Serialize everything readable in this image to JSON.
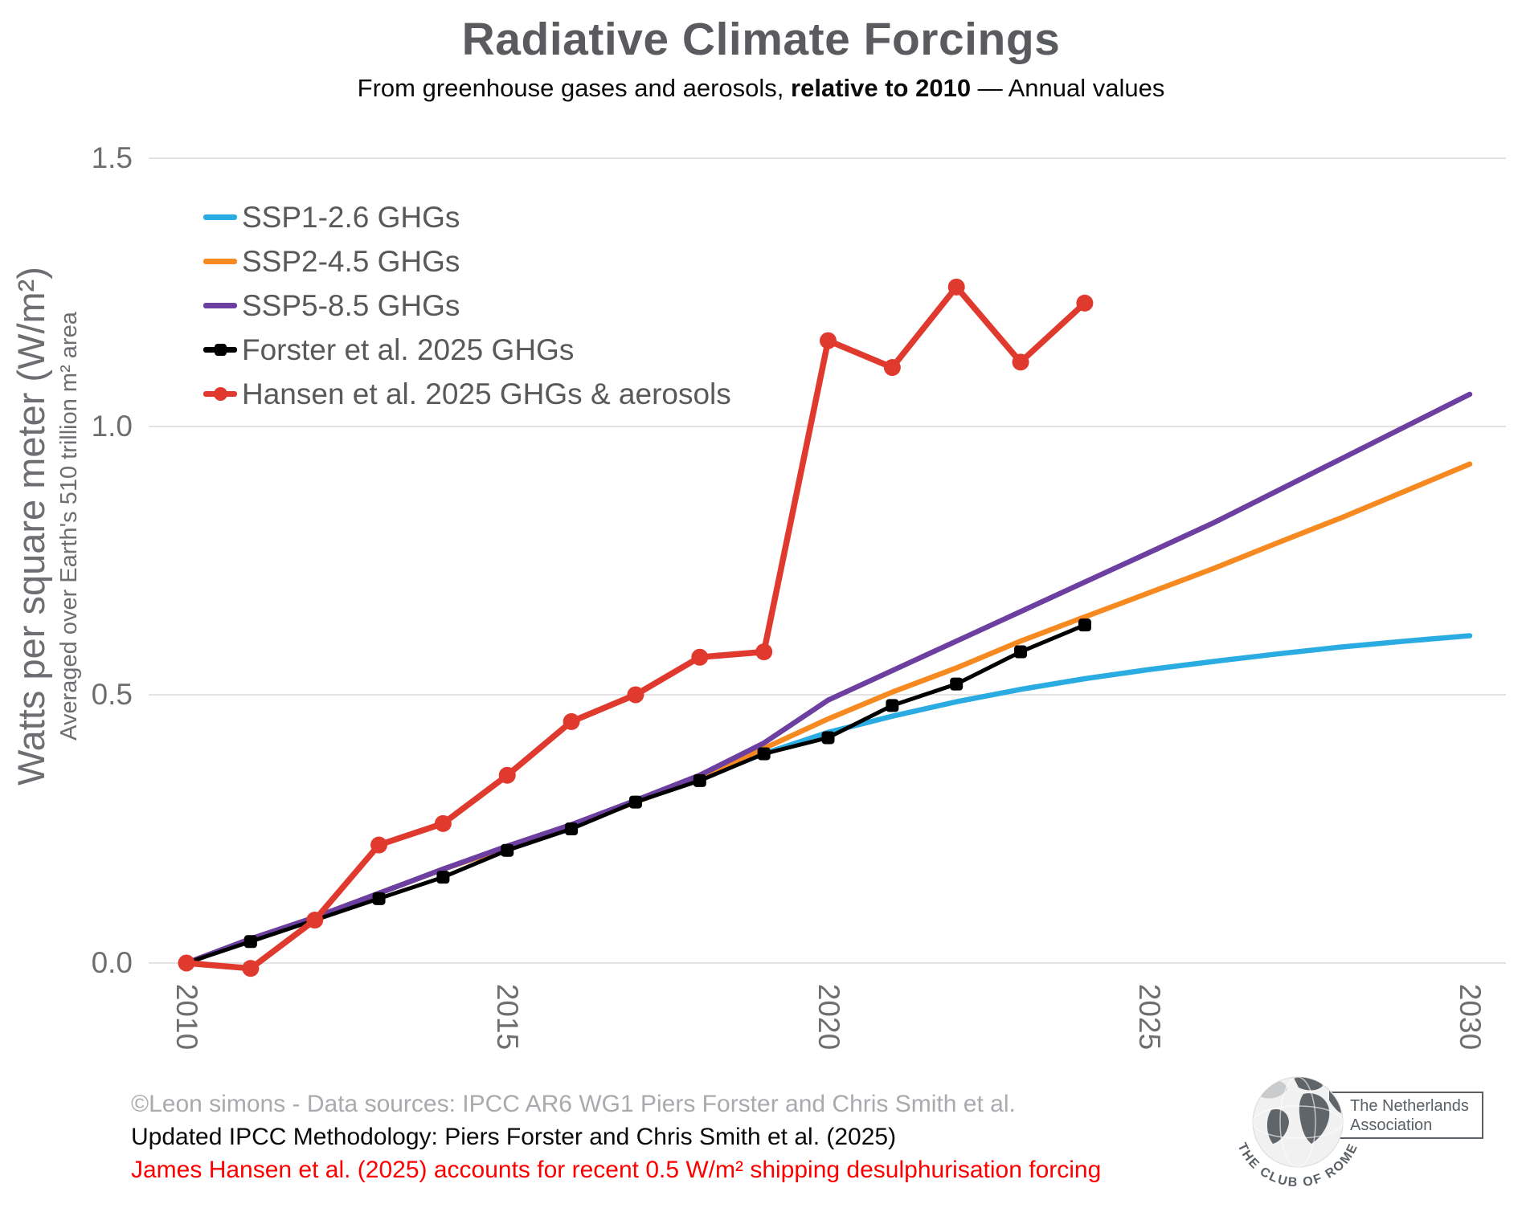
{
  "title": "Radiative Climate Forcings",
  "subtitle": {
    "prefix": "From greenhouse gases and aerosols, ",
    "bold": "relative to 2010",
    "suffix": " — Annual values"
  },
  "y_axis": {
    "label_main": "Watts per square meter (W/m²)",
    "label_sub": "Averaged over Earth's 510 trillion m² area"
  },
  "chart_data": {
    "type": "line",
    "title": "Radiative Climate Forcings",
    "xlabel": "",
    "ylabel": "Watts per square meter (W/m²)",
    "x_range": [
      2009.4,
      2030.6
    ],
    "y_range": [
      -0.05,
      1.5
    ],
    "x_ticks": [
      2010,
      2015,
      2020,
      2025,
      2030
    ],
    "x_tick_labels": [
      "2010",
      "2015",
      "2020",
      "2025",
      "2030"
    ],
    "y_ticks": [
      0.0,
      0.5,
      1.0,
      1.5
    ],
    "y_tick_labels": [
      "0.0",
      "0.5",
      "1.0",
      "1.5"
    ],
    "grid": "horizontal-only",
    "legend_position": "top-left",
    "series": [
      {
        "name": "SSP1-2.6 GHGs",
        "color": "#2AACE2",
        "marker": "none",
        "x": [
          2010,
          2011,
          2012,
          2013,
          2014,
          2015,
          2016,
          2017,
          2018,
          2019,
          2020,
          2021,
          2022,
          2023,
          2024,
          2025,
          2026,
          2027,
          2028,
          2029,
          2030
        ],
        "values": [
          0.0,
          0.045,
          0.085,
          0.13,
          0.175,
          0.215,
          0.255,
          0.3,
          0.345,
          0.39,
          0.43,
          0.46,
          0.487,
          0.51,
          0.53,
          0.547,
          0.562,
          0.576,
          0.589,
          0.6,
          0.61
        ]
      },
      {
        "name": "SSP2-4.5 GHGs",
        "color": "#F6891F",
        "marker": "none",
        "x": [
          2010,
          2011,
          2012,
          2013,
          2014,
          2015,
          2016,
          2017,
          2018,
          2019,
          2020,
          2021,
          2022,
          2023,
          2024,
          2025,
          2026,
          2027,
          2028,
          2029,
          2030
        ],
        "values": [
          0.0,
          0.045,
          0.085,
          0.13,
          0.175,
          0.215,
          0.255,
          0.3,
          0.345,
          0.4,
          0.455,
          0.505,
          0.55,
          0.6,
          0.645,
          0.69,
          0.735,
          0.783,
          0.83,
          0.88,
          0.93
        ]
      },
      {
        "name": "SSP5-8.5 GHGs",
        "color": "#6C3FA0",
        "marker": "none",
        "x": [
          2010,
          2011,
          2012,
          2013,
          2014,
          2015,
          2016,
          2017,
          2018,
          2019,
          2020,
          2021,
          2022,
          2023,
          2024,
          2025,
          2026,
          2027,
          2028,
          2029,
          2030
        ],
        "values": [
          0.0,
          0.045,
          0.085,
          0.13,
          0.175,
          0.218,
          0.258,
          0.303,
          0.35,
          0.41,
          0.49,
          0.545,
          0.6,
          0.655,
          0.71,
          0.765,
          0.82,
          0.88,
          0.94,
          1.0,
          1.06
        ]
      },
      {
        "name": "Forster et al. 2025 GHGs",
        "color": "#000000",
        "marker": "square",
        "x": [
          2010,
          2011,
          2012,
          2013,
          2014,
          2015,
          2016,
          2017,
          2018,
          2019,
          2020,
          2021,
          2022,
          2023,
          2024
        ],
        "values": [
          0.0,
          0.04,
          0.08,
          0.12,
          0.16,
          0.21,
          0.25,
          0.3,
          0.34,
          0.39,
          0.42,
          0.48,
          0.52,
          0.58,
          0.63
        ]
      },
      {
        "name": "Hansen et al. 2025 GHGs & aerosols",
        "color": "#E0392E",
        "marker": "circle",
        "x": [
          2010,
          2011,
          2012,
          2013,
          2014,
          2015,
          2016,
          2017,
          2018,
          2019,
          2020,
          2021,
          2022,
          2023,
          2024
        ],
        "values": [
          0.0,
          -0.01,
          0.08,
          0.22,
          0.26,
          0.35,
          0.45,
          0.5,
          0.57,
          0.58,
          1.16,
          1.11,
          1.26,
          1.12,
          1.23
        ]
      }
    ]
  },
  "footer": {
    "line1": "©Leon simons - Data sources: IPCC AR6 WG1 Piers Forster and Chris Smith et al.",
    "line2": "Updated IPCC Methodology: Piers Forster and Chris Smith et al. (2025)",
    "line3": "James Hansen et al. (2025) accounts for recent 0.5 W/m² shipping desulphurisation forcing"
  },
  "logo": {
    "arc_text": "THE CLUB OF ROME",
    "box_line1": "The Netherlands",
    "box_line2": "Association"
  },
  "colors": {
    "title_gray": "#595B5E",
    "tick_gray": "#6D6E71",
    "legend_gray": "#58595B",
    "gridline": "#E3E3E3",
    "footer_gray": "#A8AAAD",
    "footer_red": "#FF0000",
    "logo_gray": "#5A6065"
  }
}
